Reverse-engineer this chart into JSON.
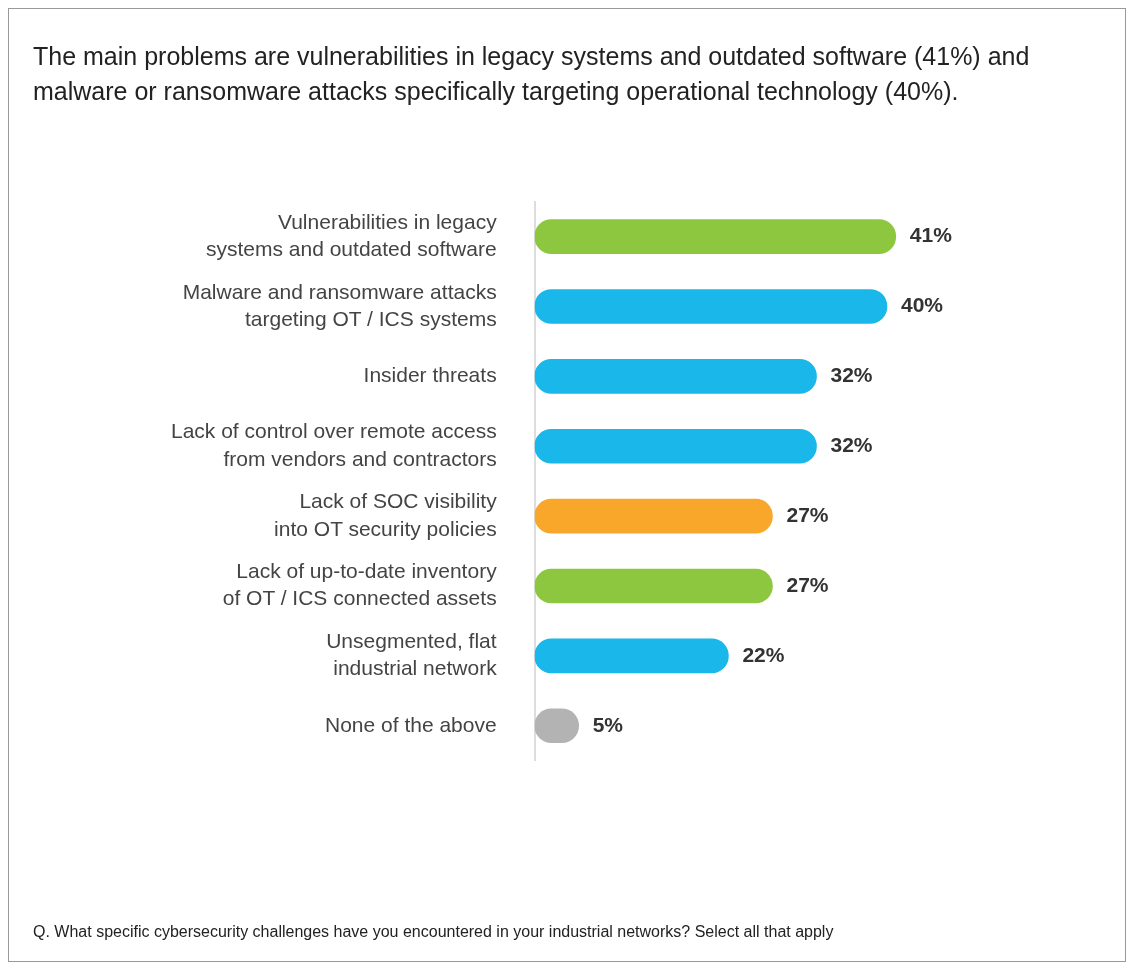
{
  "chart_data": {
    "type": "bar",
    "orientation": "horizontal",
    "title": "The main problems are vulnerabilities in legacy systems and outdated software (41%) and malware or ransomware attacks specifically targeting operational technology (40%).",
    "categories": [
      "Vulnerabilities in legacy systems and outdated software",
      "Malware and ransomware attacks targeting OT / ICS systems",
      "Insider threats",
      "Lack of control over remote access from vendors and contractors",
      "Lack of SOC visibility into OT security policies",
      "Lack of up-to-date inventory of OT / ICS connected assets",
      "Unsegmented, flat industrial network",
      "None of the above"
    ],
    "values": [
      41,
      40,
      32,
      32,
      27,
      27,
      22,
      5
    ],
    "colors": [
      "#8dc63f",
      "#1ab7ea",
      "#1ab7ea",
      "#1ab7ea",
      "#f9a72b",
      "#8dc63f",
      "#1ab7ea",
      "#b3b3b3"
    ],
    "value_labels": [
      "41%",
      "40%",
      "32%",
      "32%",
      "27%",
      "27%",
      "22%",
      "5%"
    ],
    "legend": false,
    "annotations": [
      "Q. What specific cybersecurity challenges have you encountered in your industrial networks? Select all that apply"
    ]
  }
}
